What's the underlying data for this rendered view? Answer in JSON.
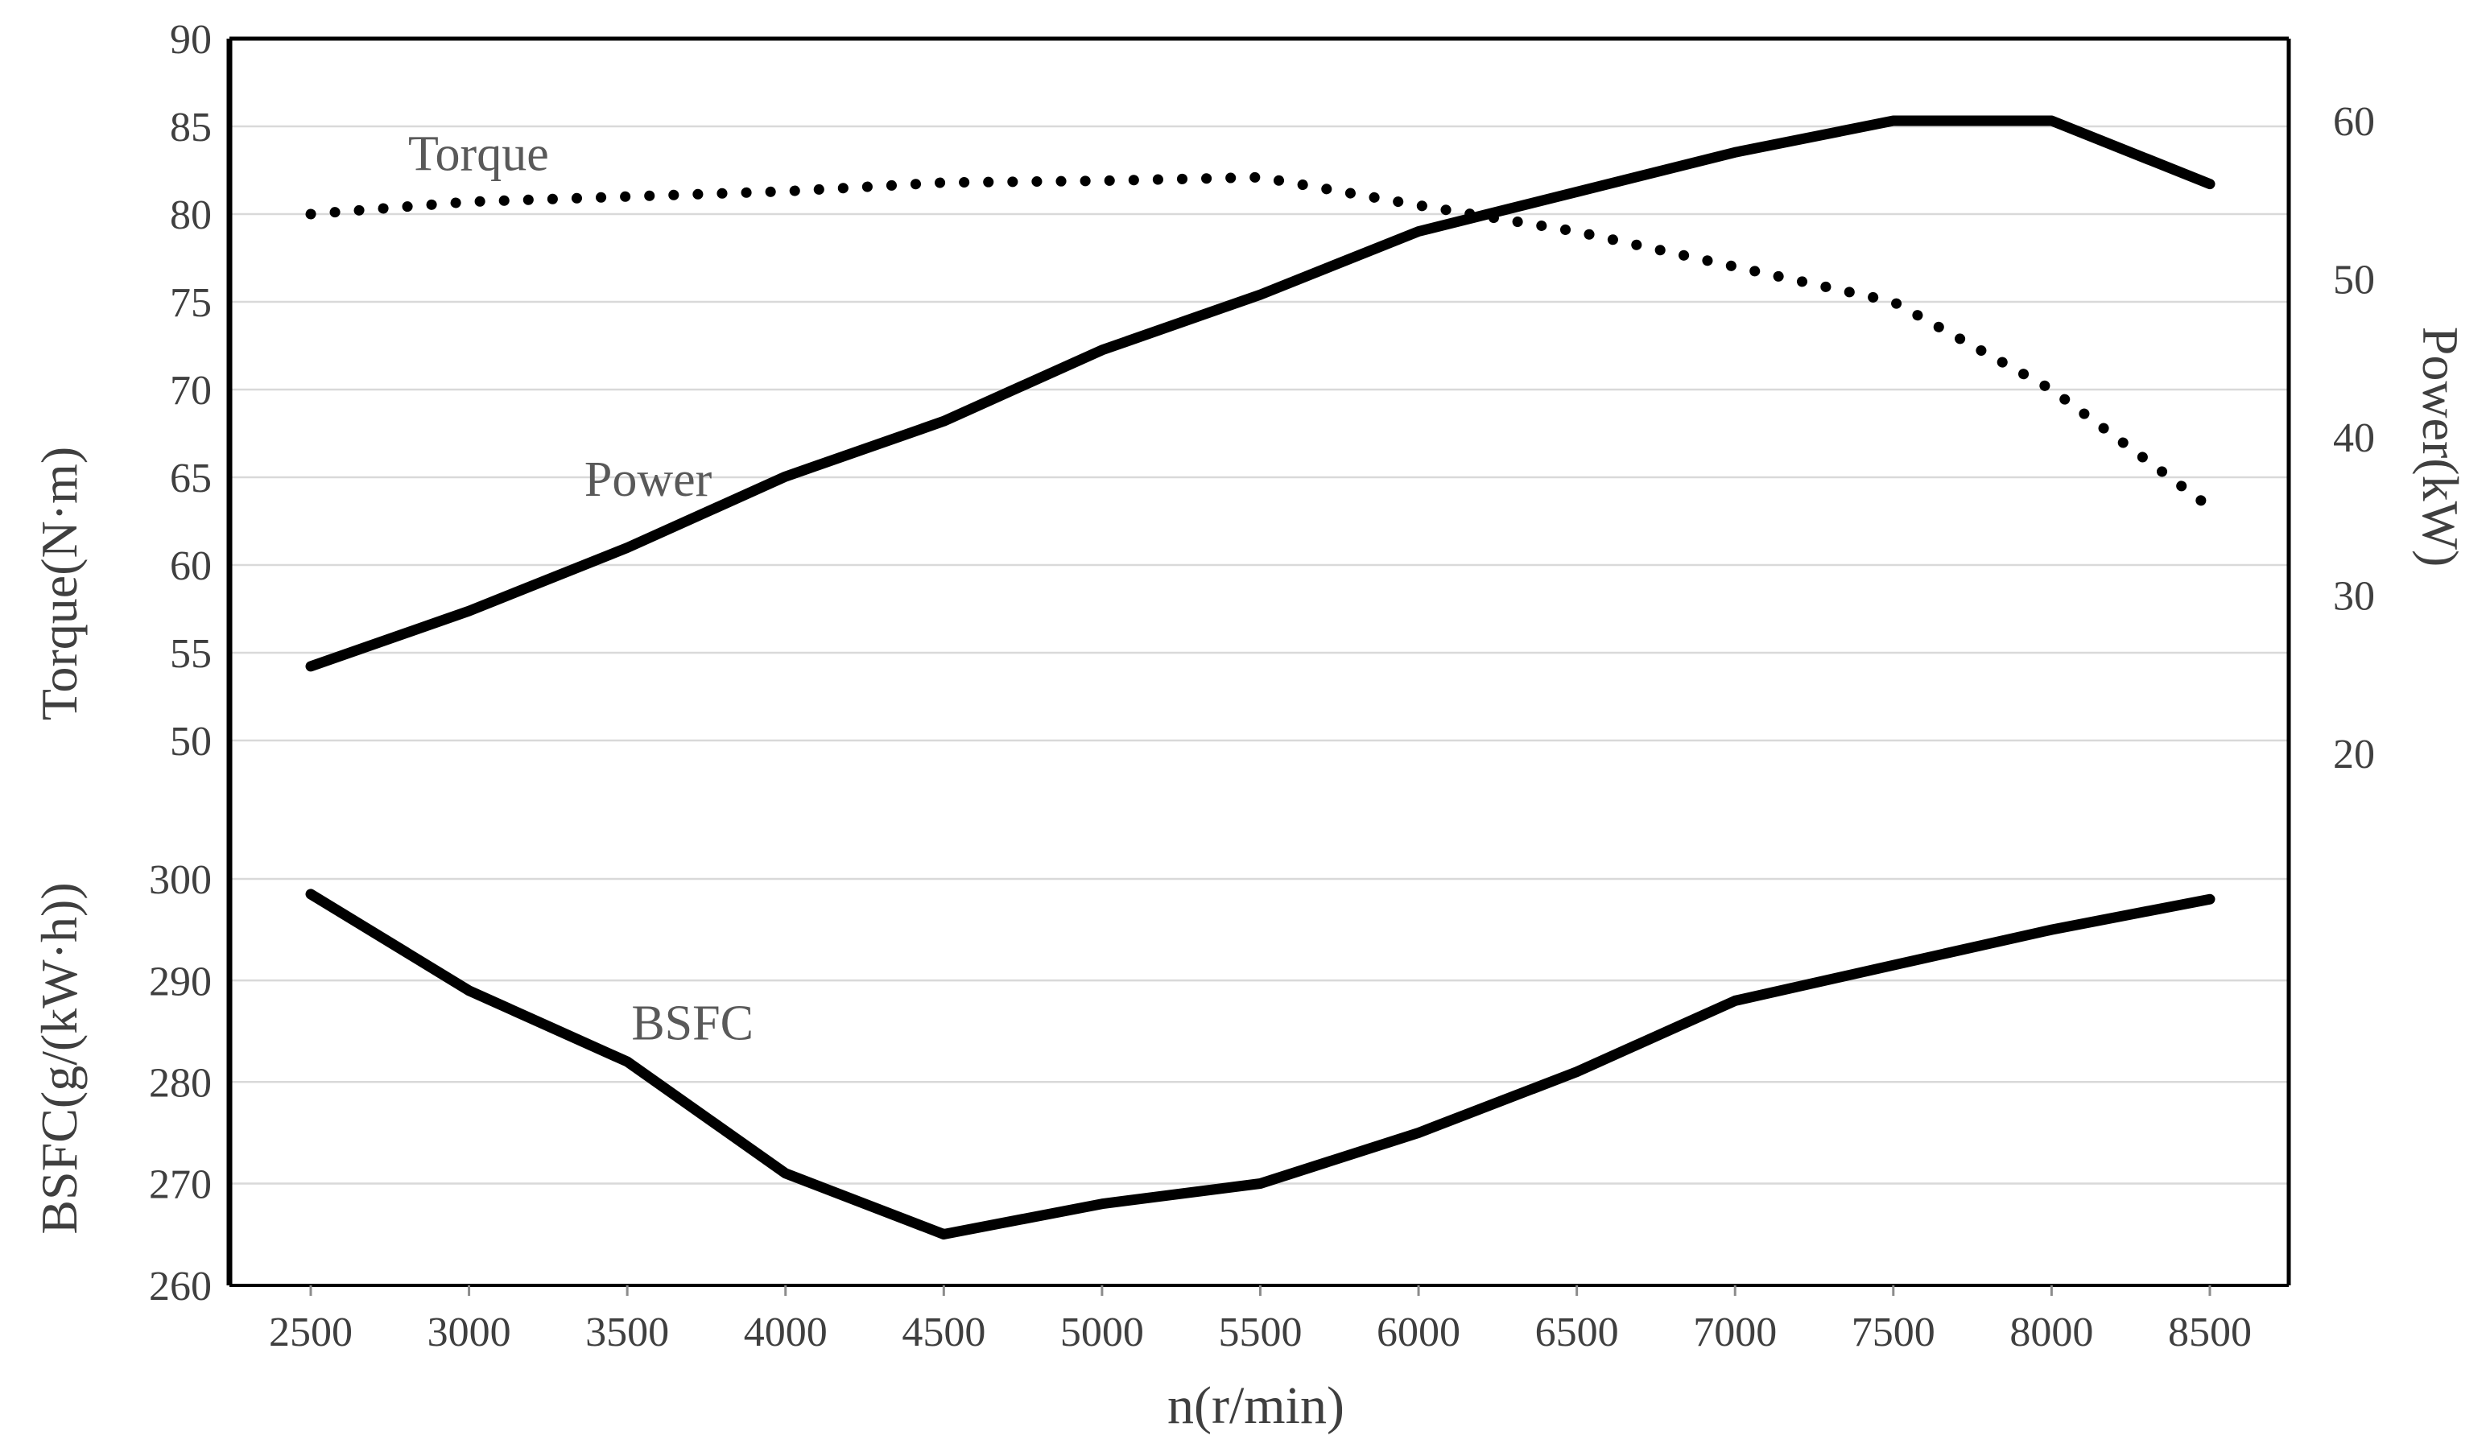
{
  "chart_data": {
    "type": "line",
    "title": "",
    "xlabel": "n(r/min)",
    "x": [
      2500,
      3000,
      3500,
      4000,
      4500,
      5000,
      5500,
      6000,
      6500,
      7000,
      7500,
      8000,
      8500
    ],
    "x_tick_labels": [
      "2500",
      "3000",
      "3500",
      "4000",
      "4500",
      "5000",
      "5500",
      "6000",
      "6500",
      "7000",
      "7500",
      "8000",
      "8500"
    ],
    "axes": {
      "torque": {
        "label": "Torque(N·m)",
        "side": "left-upper",
        "range": [
          50,
          90
        ],
        "ticks": [
          90,
          85,
          80,
          75,
          70,
          65,
          60,
          55,
          50
        ]
      },
      "bsfc": {
        "label": "BSFC(g/(kW·h))",
        "side": "left-lower",
        "range": [
          260,
          300
        ],
        "ticks": [
          300,
          290,
          280,
          270,
          260
        ]
      },
      "power": {
        "label": "Power(kW)",
        "side": "right",
        "range": [
          20,
          60
        ],
        "ticks": [
          60,
          50,
          40,
          30,
          20
        ]
      }
    },
    "series": [
      {
        "name": "Torque",
        "axis": "torque",
        "style": "dotted",
        "values": [
          80,
          80.7,
          81,
          81.3,
          81.8,
          81.9,
          82.1,
          80.5,
          79,
          77,
          75,
          70,
          63.3
        ]
      },
      {
        "name": "Power",
        "axis": "power",
        "style": "solid",
        "values": [
          25.5,
          29,
          33,
          37.5,
          41,
          45.5,
          49,
          53,
          55.5,
          58,
          60,
          60,
          56
        ]
      },
      {
        "name": "BSFC",
        "axis": "bsfc",
        "style": "solid",
        "values": [
          298.5,
          289,
          282,
          271,
          265,
          268,
          270,
          275,
          281,
          288,
          291.5,
          295,
          298
        ]
      }
    ],
    "annotations": [
      {
        "text": "Torque",
        "n": 3030,
        "axis": "torque",
        "value": 83.5
      },
      {
        "text": "Power",
        "n": 3566,
        "axis": "power",
        "value": 37.4
      },
      {
        "text": "BSFC",
        "n": 3706,
        "axis": "bsfc",
        "value": 285.9
      }
    ],
    "grid": true,
    "legend_position": "none",
    "colors": {
      "line": "#000000",
      "grid": "#d9d9d9",
      "tick_mark": "#8c8c8c",
      "tick_text": "#3f3f3f",
      "annotation_text": "#595959",
      "background": "#ffffff"
    }
  }
}
